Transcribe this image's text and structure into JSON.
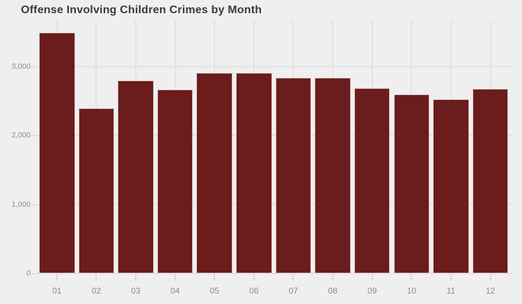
{
  "title": "Offense Involving Children Crimes by Month",
  "colors": {
    "background": "#f0efef",
    "bar_fill": "#6b1c1c",
    "bar_border": "#d6c2c2",
    "gridline": "#e3e2e2",
    "axis_text": "#8c8b8b",
    "title_text": "#3a3a3a"
  },
  "chart_data": {
    "type": "bar",
    "title": "Offense Involving Children Crimes by Month",
    "categories": [
      "01",
      "02",
      "03",
      "04",
      "05",
      "06",
      "07",
      "08",
      "09",
      "10",
      "11",
      "12"
    ],
    "values": [
      3490,
      2390,
      2800,
      2660,
      2910,
      2905,
      2840,
      2835,
      2680,
      2595,
      2520,
      2670
    ],
    "xlabel": "",
    "ylabel": "",
    "y_ticks": [
      0,
      1000,
      2000,
      3000
    ],
    "y_tick_labels": [
      "0",
      "1,000",
      "2,000",
      "3,000"
    ],
    "ylim": [
      0,
      3660
    ],
    "grid": true,
    "legend": false
  }
}
